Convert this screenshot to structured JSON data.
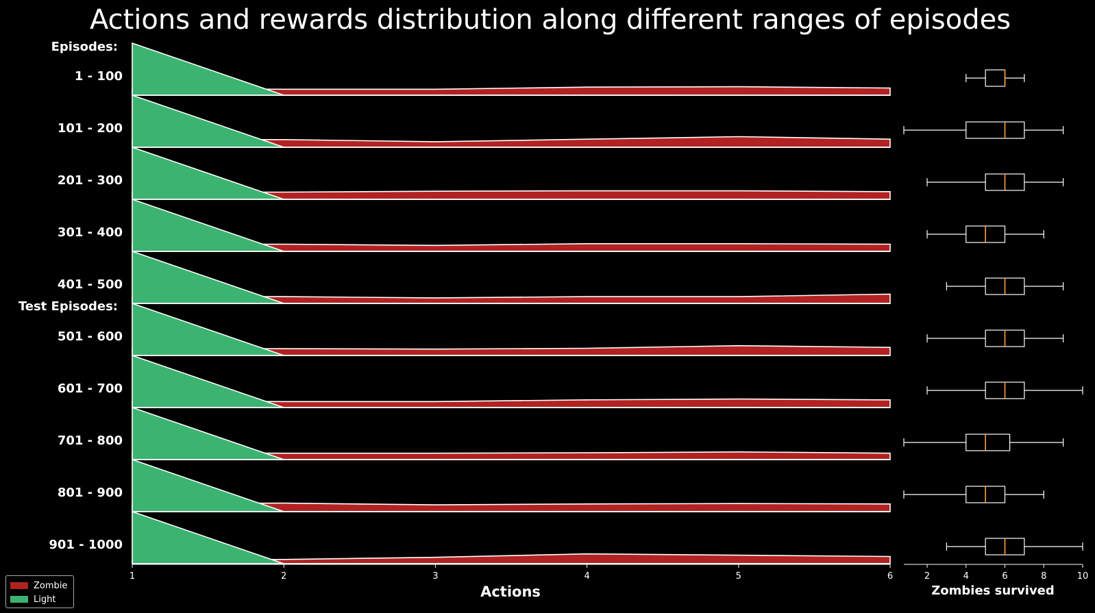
{
  "chart_data": {
    "type": "area",
    "title": "Actions and rewards distribution along different ranges of episodes",
    "section_labels": [
      "Episodes:",
      "Test Episodes:"
    ],
    "xlabel": "Actions",
    "x": [
      1,
      2,
      3,
      4,
      5,
      6
    ],
    "xlim": [
      1,
      6
    ],
    "colors": {
      "Zombie": "#b22222",
      "Light": "#3cb371"
    },
    "legend": [
      {
        "name": "Zombie",
        "color": "#b22222"
      },
      {
        "name": "Light",
        "color": "#3cb371"
      }
    ],
    "rows": [
      {
        "label": "1 - 100",
        "light": [
          1.0,
          0.0,
          0,
          0,
          0,
          0
        ],
        "zombie": [
          0.16,
          0.14,
          0.14,
          0.19,
          0.2,
          0.17
        ]
      },
      {
        "label": "101 - 200",
        "light": [
          1.0,
          0.0,
          0,
          0,
          0,
          0
        ],
        "zombie": [
          0.18,
          0.18,
          0.13,
          0.19,
          0.25,
          0.19
        ]
      },
      {
        "label": "201 - 300",
        "light": [
          1.0,
          0.0,
          0,
          0,
          0,
          0
        ],
        "zombie": [
          0.17,
          0.17,
          0.19,
          0.2,
          0.2,
          0.18
        ]
      },
      {
        "label": "301 - 400",
        "light": [
          1.0,
          0.0,
          0,
          0,
          0,
          0
        ],
        "zombie": [
          0.16,
          0.17,
          0.14,
          0.18,
          0.18,
          0.17
        ]
      },
      {
        "label": "401 - 500",
        "light": [
          1.0,
          0.0,
          0,
          0,
          0,
          0
        ],
        "zombie": [
          0.16,
          0.16,
          0.13,
          0.16,
          0.16,
          0.22
        ]
      },
      {
        "label": "501 - 600",
        "light": [
          1.0,
          0.0,
          0,
          0,
          0,
          0
        ],
        "zombie": [
          0.17,
          0.16,
          0.15,
          0.17,
          0.23,
          0.19
        ]
      },
      {
        "label": "601 - 700",
        "light": [
          1.0,
          0.0,
          0,
          0,
          0,
          0
        ],
        "zombie": [
          0.15,
          0.14,
          0.14,
          0.18,
          0.2,
          0.18
        ]
      },
      {
        "label": "701 - 800",
        "light": [
          1.0,
          0.0,
          0,
          0,
          0,
          0
        ],
        "zombie": [
          0.16,
          0.15,
          0.15,
          0.16,
          0.18,
          0.15
        ]
      },
      {
        "label": "801 - 900",
        "light": [
          1.0,
          0.0,
          0,
          0,
          0,
          0
        ],
        "zombie": [
          0.19,
          0.2,
          0.16,
          0.18,
          0.19,
          0.18
        ]
      },
      {
        "label": "901 - 1000",
        "light": [
          1.0,
          0.0,
          0,
          0,
          0,
          0
        ],
        "zombie": [
          0.09,
          0.1,
          0.15,
          0.23,
          0.2,
          0.17
        ]
      }
    ],
    "boxplot": {
      "xlabel": "Zombies survived",
      "xticks": [
        2,
        4,
        6,
        8,
        10
      ],
      "xlim": [
        0.8,
        10
      ],
      "median_color": "#ff9f43",
      "boxes": [
        {
          "whislo": 4,
          "q1": 5,
          "med": 6,
          "q3": 6,
          "whishi": 7
        },
        {
          "whislo": 0.8,
          "q1": 4,
          "med": 6,
          "q3": 7,
          "whishi": 9
        },
        {
          "whislo": 2,
          "q1": 5,
          "med": 6,
          "q3": 7,
          "whishi": 9
        },
        {
          "whislo": 2,
          "q1": 4,
          "med": 5,
          "q3": 6,
          "whishi": 8
        },
        {
          "whislo": 3,
          "q1": 5,
          "med": 6,
          "q3": 7,
          "whishi": 9
        },
        {
          "whislo": 2,
          "q1": 5,
          "med": 6,
          "q3": 7,
          "whishi": 9
        },
        {
          "whislo": 2,
          "q1": 5,
          "med": 6,
          "q3": 7,
          "whishi": 10
        },
        {
          "whislo": 0.8,
          "q1": 4,
          "med": 5,
          "q3": 6.25,
          "whishi": 9
        },
        {
          "whislo": 0.8,
          "q1": 4,
          "med": 5,
          "q3": 6,
          "whishi": 8
        },
        {
          "whislo": 3,
          "q1": 5,
          "med": 6,
          "q3": 7,
          "whishi": 10
        }
      ]
    }
  }
}
